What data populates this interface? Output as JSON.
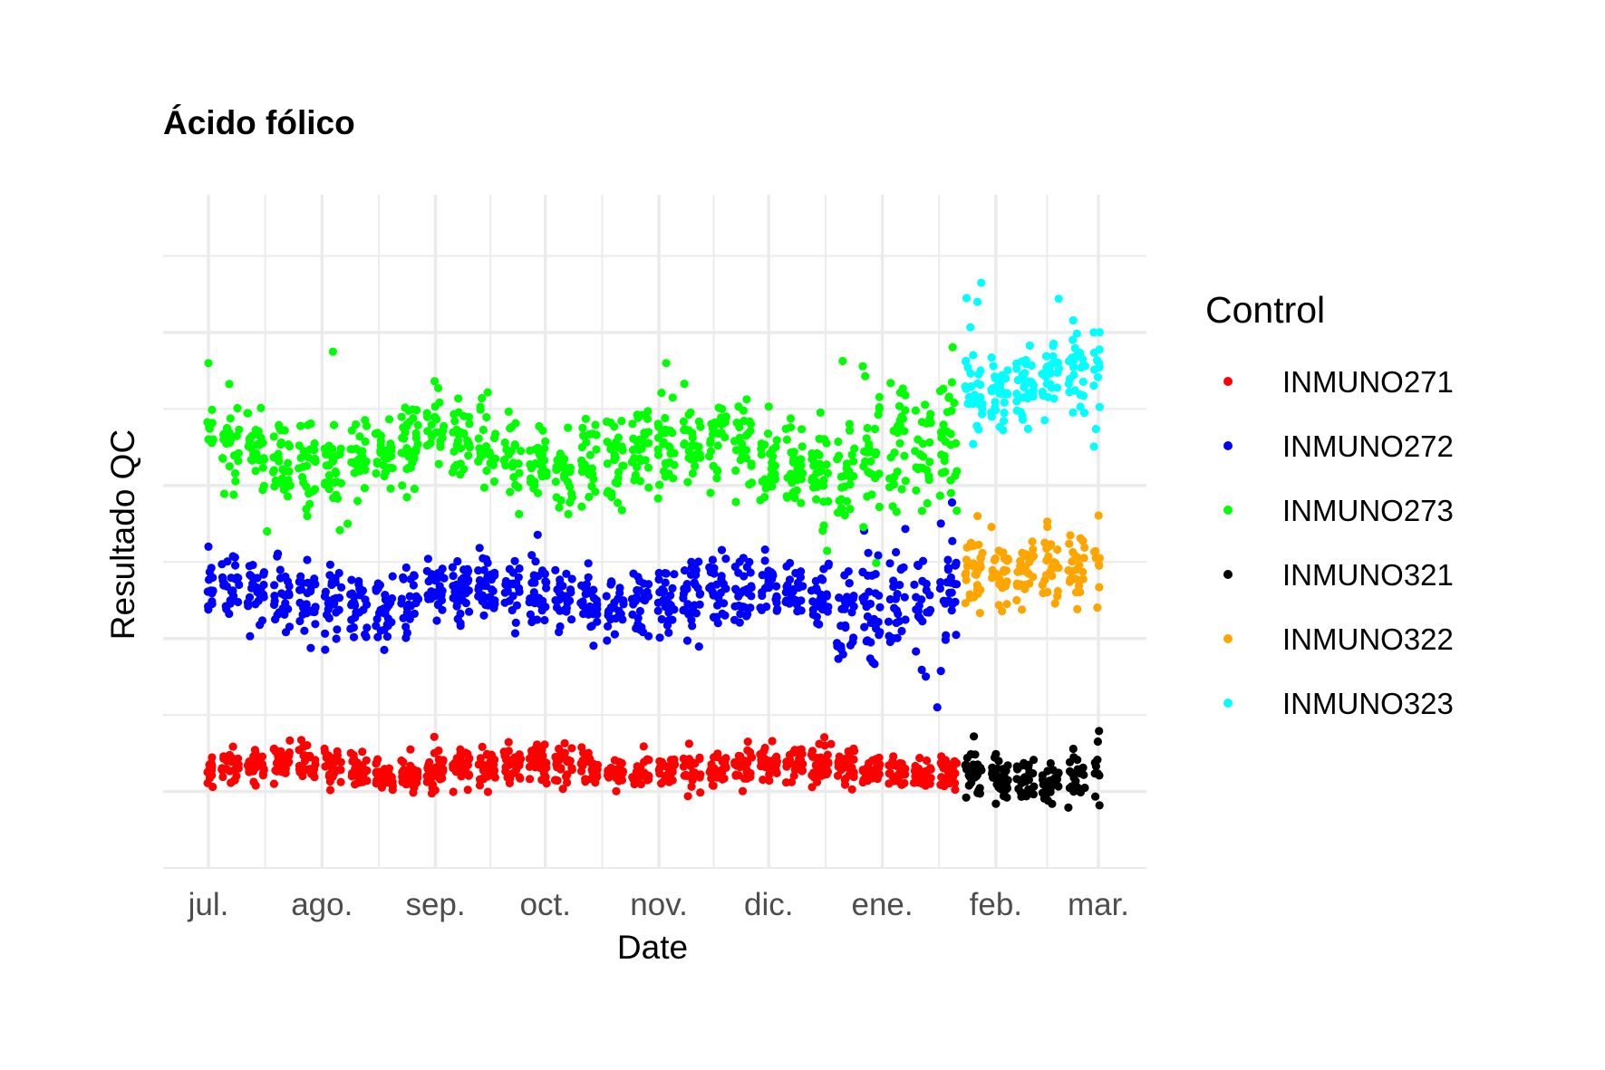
{
  "chart_data": {
    "type": "scatter",
    "title": "Ácido fólico",
    "xlabel": "Date",
    "ylabel": "Resultado QC",
    "x_ticks": [
      "jul.",
      "ago.",
      "sep.",
      "oct.",
      "nov.",
      "dic.",
      "ene.",
      "feb.",
      "mar."
    ],
    "y_tick_labels_shown": false,
    "grid": true,
    "legend": {
      "title": "Control",
      "position": "right"
    },
    "series": [
      {
        "name": "INMUNO271",
        "color": "#ff0000",
        "start": "2021-07-01",
        "end": "2022-01-22",
        "mean": 1.3,
        "spread": 0.12,
        "notes": "outliers ~1.62 in mid-Dec, low values ~0.95 in January"
      },
      {
        "name": "INMUNO272",
        "color": "#0000ff",
        "start": "2021-07-01",
        "end": "2022-01-22",
        "mean": 3.55,
        "spread": 0.22,
        "notes": "low outliers down to ~2.0 in mid-January"
      },
      {
        "name": "INMUNO273",
        "color": "#00ff00",
        "start": "2021-07-01",
        "end": "2022-01-22",
        "mean": 5.4,
        "spread": 0.28,
        "notes": "high outliers ~6.7 early Aug and early Nov"
      },
      {
        "name": "INMUNO321",
        "color": "#000000",
        "start": "2022-01-22",
        "end": "2022-03-01",
        "mean": 1.22,
        "spread": 0.15
      },
      {
        "name": "INMUNO322",
        "color": "#ffa500",
        "start": "2022-01-22",
        "end": "2022-03-01",
        "mean": 3.95,
        "spread": 0.22
      },
      {
        "name": "INMUNO323",
        "color": "#00ffff",
        "start": "2022-01-22",
        "end": "2022-03-01",
        "mean": 6.3,
        "spread": 0.28,
        "notes": "early high values up to ~7.7"
      }
    ]
  }
}
